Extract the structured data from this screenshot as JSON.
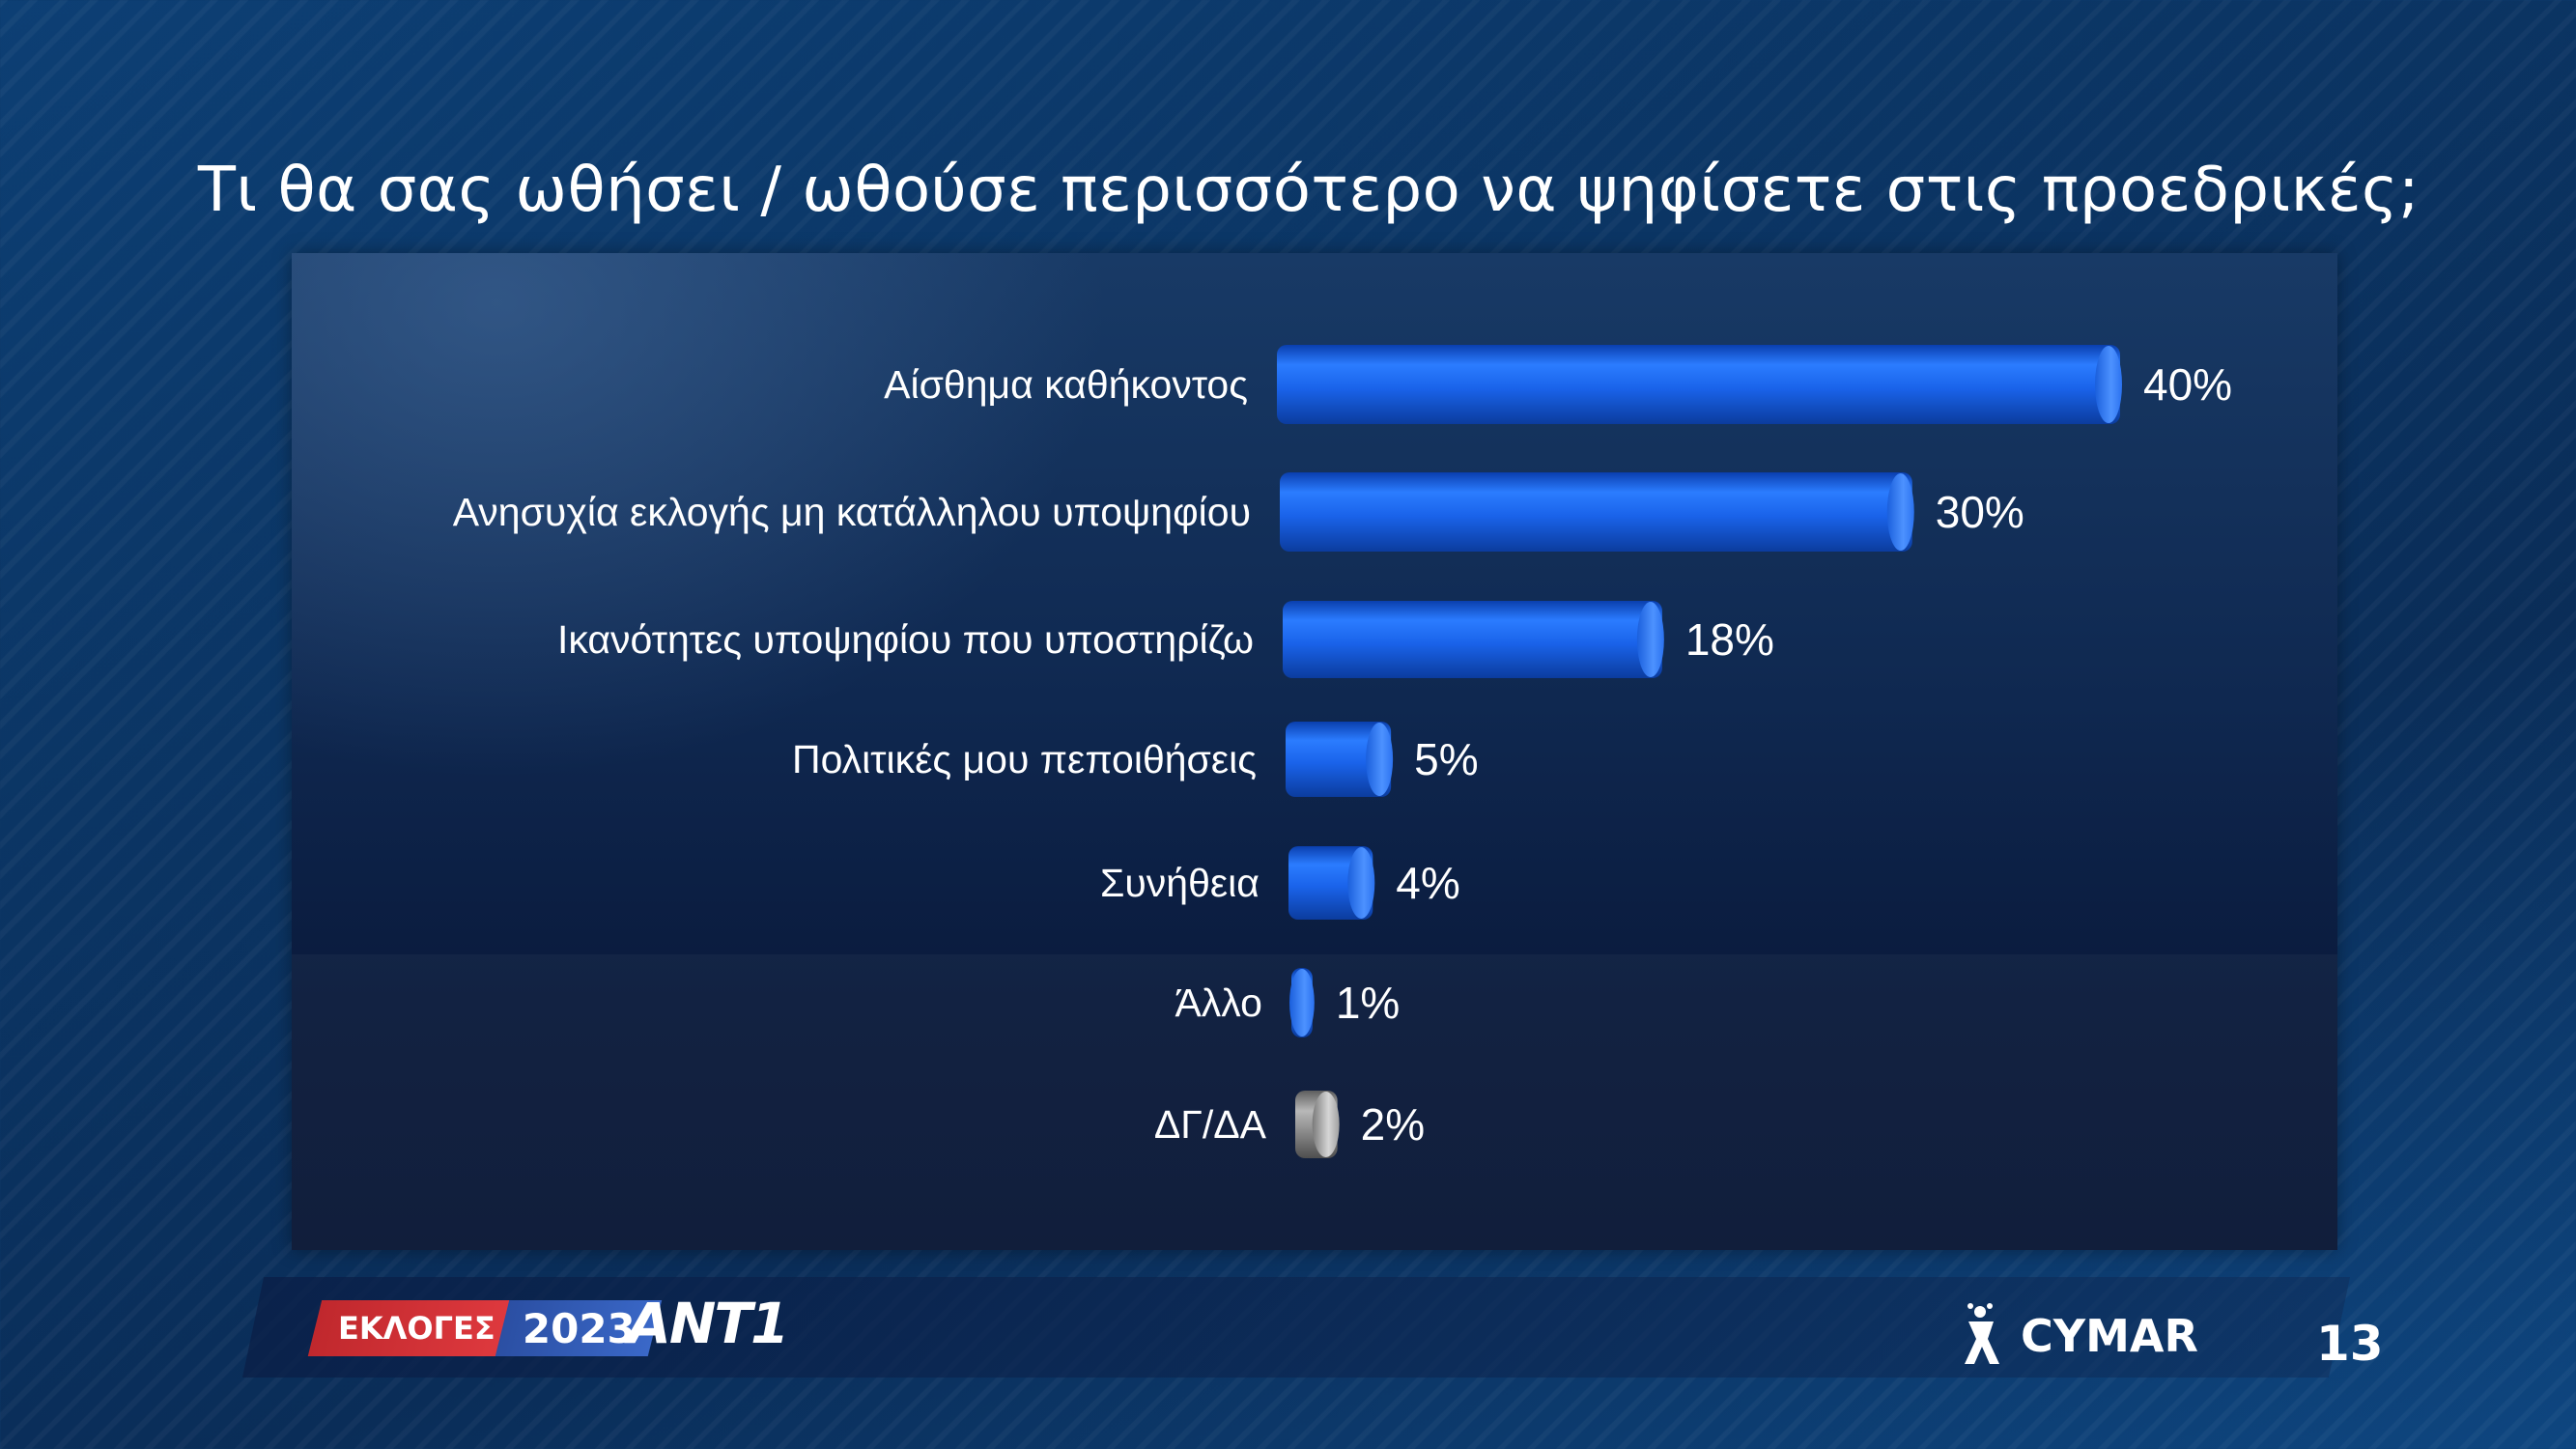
{
  "title": "Τι θα σας ωθήσει / ωθούσε περισσότερο να ψηφίσετε στις προεδρικές;",
  "chart_data": {
    "type": "bar",
    "orientation": "horizontal",
    "title": "Τι θα σας ωθήσει / ωθούσε περισσότερο να ψηφίσετε στις προεδρικές;",
    "categories": [
      "Αίσθημα καθήκοντος",
      "Ανησυχία εκλογής μη κατάλληλου υποψηφίου",
      "Ικανότητες υποψηφίου που υποστηρίζω",
      "Πολιτικές μου πεποιθήσεις",
      "Συνήθεια",
      "Άλλο",
      "ΔΓ/ΔΑ"
    ],
    "values": [
      40,
      30,
      18,
      5,
      4,
      1,
      2
    ],
    "value_labels": [
      "40%",
      "30%",
      "18%",
      "5%",
      "4%",
      "1%",
      "2%"
    ],
    "colors": [
      "#1f6cf0",
      "#1f6cf0",
      "#1f6cf0",
      "#1f6cf0",
      "#1f6cf0",
      "#1f6cf0",
      "#9a9a9a"
    ],
    "xlim": [
      0,
      40
    ],
    "grid": false,
    "legend": "none"
  },
  "footer": {
    "badge_left": "ΕΚΛΟΓΕΣ",
    "badge_year": "2023",
    "channel_logo": "ANT1",
    "pollster": "CYMAR",
    "page_number": "13"
  }
}
